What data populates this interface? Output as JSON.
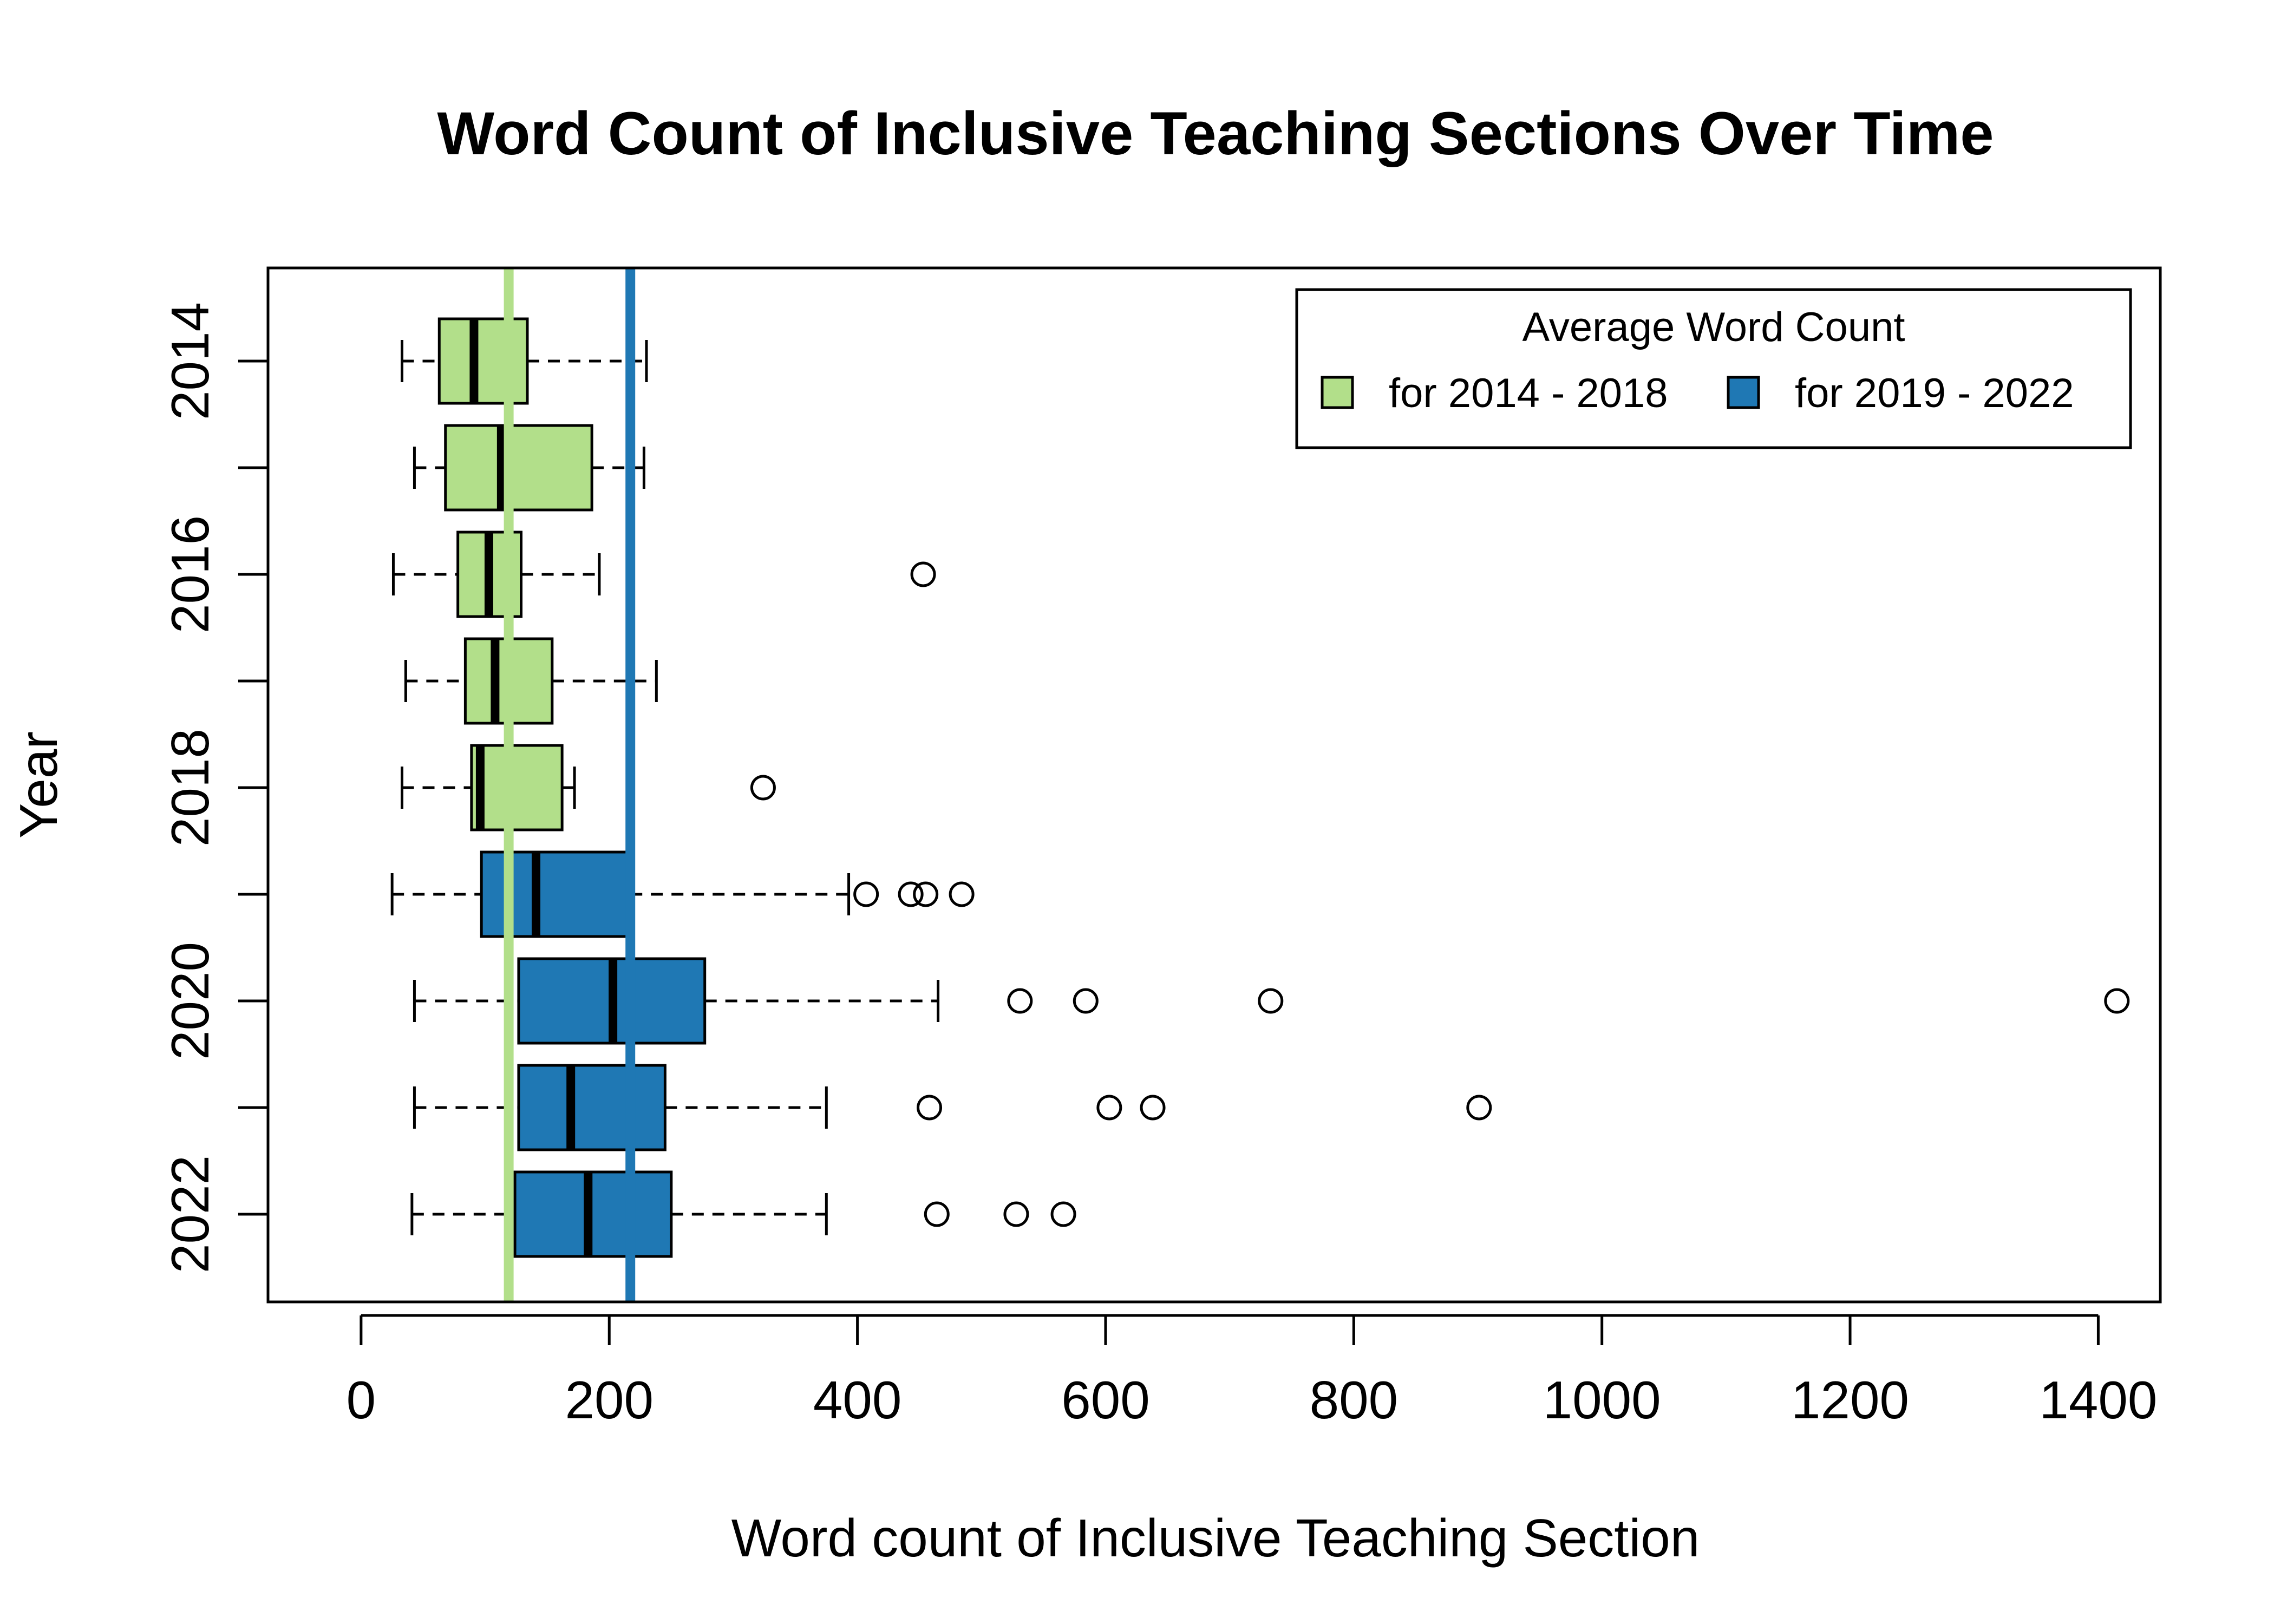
{
  "chart_data": {
    "type": "boxplot",
    "orientation": "horizontal",
    "title": "Word Count of Inclusive Teaching Sections Over Time",
    "xlabel": "Word count of Inclusive Teaching Section",
    "ylabel": "Year",
    "xlim": [
      -75,
      1450
    ],
    "x_ticks": [
      0,
      200,
      400,
      600,
      800,
      1000,
      1200,
      1400
    ],
    "x_tick_labels": [
      "0",
      "200",
      "400",
      "600",
      "800",
      "1000",
      "1200",
      "1400"
    ],
    "y_tick_labels": [
      "2014",
      "",
      "2016",
      "",
      "2018",
      "",
      "2020",
      "",
      "2022"
    ],
    "categories": [
      "2014",
      "2015",
      "2016",
      "2017",
      "2018",
      "2019",
      "2020",
      "2021",
      "2022"
    ],
    "boxes": [
      {
        "year": "2014",
        "min": 33,
        "q1": 63,
        "median": 91,
        "q3": 134,
        "max": 230,
        "outliers": [],
        "group": "2014-2018"
      },
      {
        "year": "2015",
        "min": 43,
        "q1": 68,
        "median": 113,
        "q3": 186,
        "max": 228,
        "outliers": [],
        "group": "2014-2018"
      },
      {
        "year": "2016",
        "min": 26,
        "q1": 78,
        "median": 103,
        "q3": 129,
        "max": 192,
        "outliers": [
          453
        ],
        "group": "2014-2018"
      },
      {
        "year": "2017",
        "min": 36,
        "q1": 84,
        "median": 108,
        "q3": 154,
        "max": 238,
        "outliers": [],
        "group": "2014-2018"
      },
      {
        "year": "2018",
        "min": 33,
        "q1": 89,
        "median": 96,
        "q3": 162,
        "max": 172,
        "outliers": [
          324
        ],
        "group": "2014-2018"
      },
      {
        "year": "2019",
        "min": 25,
        "q1": 97,
        "median": 141,
        "q3": 217,
        "max": 393,
        "outliers": [
          407,
          443,
          455,
          484
        ],
        "group": "2019-2022"
      },
      {
        "year": "2020",
        "min": 43,
        "q1": 127,
        "median": 203,
        "q3": 277,
        "max": 465,
        "outliers": [
          531,
          584,
          733,
          1415
        ],
        "group": "2019-2022"
      },
      {
        "year": "2021",
        "min": 43,
        "q1": 127,
        "median": 169,
        "q3": 245,
        "max": 375,
        "outliers": [
          458,
          603,
          638,
          901
        ],
        "group": "2019-2022"
      },
      {
        "year": "2022",
        "min": 41,
        "q1": 124,
        "median": 183,
        "q3": 250,
        "max": 375,
        "outliers": [
          464,
          528,
          566
        ],
        "group": "2019-2022"
      }
    ],
    "reference_lines": [
      {
        "group": "2014-2018",
        "value": 119
      },
      {
        "group": "2019-2022",
        "value": 217
      }
    ],
    "colors": {
      "2014-2018": "#b2df8a",
      "2019-2022": "#1f78b4"
    },
    "legend": {
      "title": "Average Word Count",
      "position": "top-right",
      "entries": [
        {
          "label": "for 2014 - 2018",
          "group": "2014-2018"
        },
        {
          "label": "for 2019 - 2022",
          "group": "2019-2022"
        }
      ]
    }
  }
}
